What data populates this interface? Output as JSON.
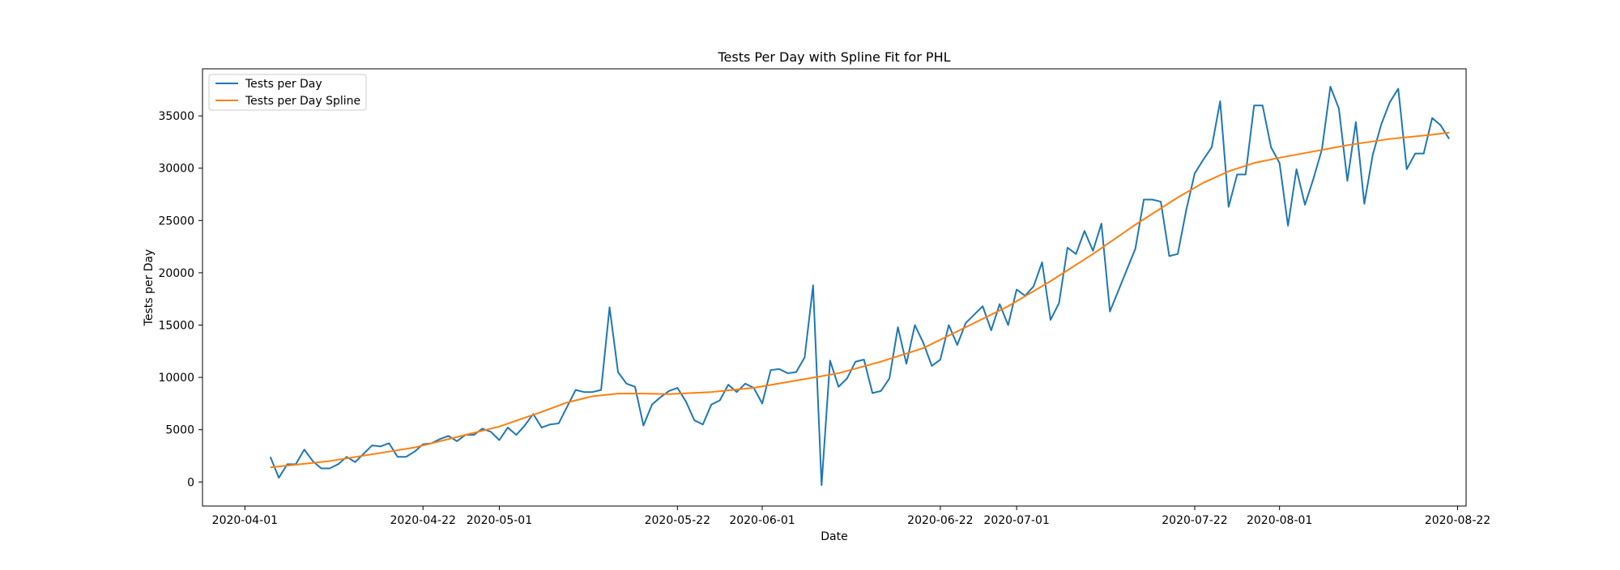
{
  "chart_data": {
    "type": "line",
    "title": "Tests Per Day with Spline Fit for PHL",
    "xlabel": "Date",
    "ylabel": "Tests per Day",
    "x_range": [
      "2020-03-31",
      "2020-08-28"
    ],
    "xlim": [
      -5,
      144
    ],
    "ylim": [
      -2300,
      39500
    ],
    "grid": false,
    "legend_position": "top-left",
    "x_ticks": [
      {
        "label": "2020-04-01",
        "day": 0
      },
      {
        "label": "2020-04-22",
        "day": 21
      },
      {
        "label": "2020-05-01",
        "day": 30
      },
      {
        "label": "2020-05-22",
        "day": 51
      },
      {
        "label": "2020-06-01",
        "day": 61
      },
      {
        "label": "2020-06-22",
        "day": 82
      },
      {
        "label": "2020-07-01",
        "day": 91
      },
      {
        "label": "2020-07-22",
        "day": 112
      },
      {
        "label": "2020-08-01",
        "day": 122
      },
      {
        "label": "2020-08-22",
        "day": 143
      }
    ],
    "y_ticks": [
      0,
      5000,
      10000,
      15000,
      20000,
      25000,
      30000,
      35000
    ],
    "series": [
      {
        "name": "Tests per Day",
        "color": "#1f77b4",
        "points": [
          [
            3,
            2400
          ],
          [
            4,
            400
          ],
          [
            5,
            1700
          ],
          [
            6,
            1700
          ],
          [
            7,
            3100
          ],
          [
            8,
            2000
          ],
          [
            9,
            1300
          ],
          [
            10,
            1300
          ],
          [
            11,
            1700
          ],
          [
            12,
            2400
          ],
          [
            13,
            1900
          ],
          [
            14,
            2700
          ],
          [
            15,
            3500
          ],
          [
            16,
            3400
          ],
          [
            17,
            3700
          ],
          [
            18,
            2400
          ],
          [
            19,
            2400
          ],
          [
            20,
            2900
          ],
          [
            21,
            3600
          ],
          [
            22,
            3700
          ],
          [
            23,
            4100
          ],
          [
            24,
            4400
          ],
          [
            25,
            3900
          ],
          [
            26,
            4500
          ],
          [
            27,
            4500
          ],
          [
            28,
            5100
          ],
          [
            29,
            4800
          ],
          [
            30,
            4000
          ],
          [
            31,
            5200
          ],
          [
            32,
            4500
          ],
          [
            33,
            5400
          ],
          [
            34,
            6500
          ],
          [
            35,
            5200
          ],
          [
            36,
            5500
          ],
          [
            37,
            5600
          ],
          [
            38,
            7200
          ],
          [
            39,
            8800
          ],
          [
            40,
            8600
          ],
          [
            41,
            8600
          ],
          [
            42,
            8800
          ],
          [
            43,
            16700
          ],
          [
            44,
            10500
          ],
          [
            45,
            9400
          ],
          [
            46,
            9100
          ],
          [
            47,
            5400
          ],
          [
            48,
            7400
          ],
          [
            49,
            8100
          ],
          [
            50,
            8700
          ],
          [
            51,
            9000
          ],
          [
            52,
            7700
          ],
          [
            53,
            5900
          ],
          [
            54,
            5500
          ],
          [
            55,
            7400
          ],
          [
            56,
            7800
          ],
          [
            57,
            9300
          ],
          [
            58,
            8600
          ],
          [
            59,
            9400
          ],
          [
            60,
            9000
          ],
          [
            61,
            7500
          ],
          [
            62,
            10700
          ],
          [
            63,
            10800
          ],
          [
            64,
            10400
          ],
          [
            65,
            10500
          ],
          [
            66,
            11900
          ],
          [
            67,
            18800
          ],
          [
            68,
            -300
          ],
          [
            69,
            11600
          ],
          [
            70,
            9100
          ],
          [
            71,
            9900
          ],
          [
            72,
            11500
          ],
          [
            73,
            11700
          ],
          [
            74,
            8500
          ],
          [
            75,
            8700
          ],
          [
            76,
            9900
          ],
          [
            77,
            14800
          ],
          [
            78,
            11300
          ],
          [
            79,
            15000
          ],
          [
            80,
            13300
          ],
          [
            81,
            11100
          ],
          [
            82,
            11700
          ],
          [
            83,
            15000
          ],
          [
            84,
            13100
          ],
          [
            85,
            15200
          ],
          [
            86,
            16000
          ],
          [
            87,
            16800
          ],
          [
            88,
            14500
          ],
          [
            89,
            17000
          ],
          [
            90,
            15000
          ],
          [
            91,
            18400
          ],
          [
            92,
            17800
          ],
          [
            93,
            18700
          ],
          [
            94,
            21000
          ],
          [
            95,
            15500
          ],
          [
            96,
            17100
          ],
          [
            97,
            22400
          ],
          [
            98,
            21800
          ],
          [
            99,
            24000
          ],
          [
            100,
            22100
          ],
          [
            101,
            24700
          ],
          [
            102,
            16300
          ],
          [
            103,
            18300
          ],
          [
            104,
            20300
          ],
          [
            105,
            22300
          ],
          [
            106,
            27000
          ],
          [
            107,
            27000
          ],
          [
            108,
            26800
          ],
          [
            109,
            21600
          ],
          [
            110,
            21800
          ],
          [
            111,
            26000
          ],
          [
            112,
            29500
          ],
          [
            113,
            30800
          ],
          [
            114,
            32000
          ],
          [
            115,
            36400
          ],
          [
            116,
            26300
          ],
          [
            117,
            29400
          ],
          [
            118,
            29400
          ],
          [
            119,
            36000
          ],
          [
            120,
            36000
          ],
          [
            121,
            32000
          ],
          [
            122,
            30500
          ],
          [
            123,
            24500
          ],
          [
            124,
            29900
          ],
          [
            125,
            26500
          ],
          [
            126,
            29000
          ],
          [
            127,
            31800
          ],
          [
            128,
            37800
          ],
          [
            129,
            35700
          ],
          [
            130,
            28800
          ],
          [
            131,
            34400
          ],
          [
            132,
            26600
          ],
          [
            133,
            31300
          ],
          [
            134,
            34200
          ],
          [
            135,
            36300
          ],
          [
            136,
            37600
          ],
          [
            137,
            29900
          ],
          [
            138,
            31400
          ],
          [
            139,
            31400
          ],
          [
            140,
            34800
          ],
          [
            141,
            34100
          ],
          [
            142,
            32800
          ]
        ]
      },
      {
        "name": "Tests per Day Spline",
        "color": "#ff7f0e",
        "points": [
          [
            3,
            1400
          ],
          [
            10,
            2000
          ],
          [
            20,
            3300
          ],
          [
            25,
            4300
          ],
          [
            30,
            5300
          ],
          [
            35,
            6700
          ],
          [
            38,
            7600
          ],
          [
            41,
            8200
          ],
          [
            44,
            8450
          ],
          [
            47,
            8450
          ],
          [
            50,
            8400
          ],
          [
            55,
            8600
          ],
          [
            60,
            9000
          ],
          [
            65,
            9700
          ],
          [
            70,
            10400
          ],
          [
            75,
            11500
          ],
          [
            80,
            12800
          ],
          [
            85,
            14800
          ],
          [
            90,
            16800
          ],
          [
            95,
            19200
          ],
          [
            100,
            21800
          ],
          [
            105,
            24600
          ],
          [
            110,
            27200
          ],
          [
            113,
            28600
          ],
          [
            116,
            29700
          ],
          [
            119,
            30500
          ],
          [
            122,
            31000
          ],
          [
            126,
            31600
          ],
          [
            130,
            32200
          ],
          [
            135,
            32800
          ],
          [
            140,
            33200
          ],
          [
            142,
            33400
          ]
        ]
      }
    ]
  }
}
